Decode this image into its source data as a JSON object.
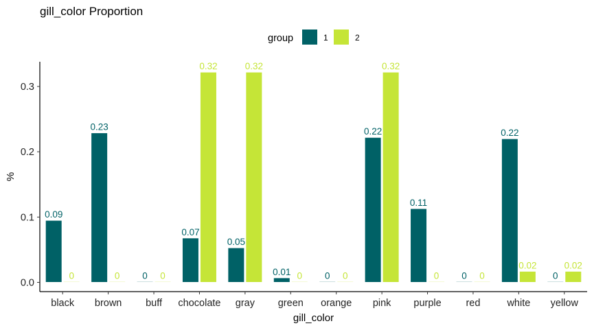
{
  "chart_data": {
    "type": "bar",
    "title": "gill_color Proportion",
    "xlabel": "gill_color",
    "ylabel": "%",
    "ylim": [
      0,
      0.34
    ],
    "yticks": [
      0.0,
      0.1,
      0.2,
      0.3
    ],
    "ytick_labels": [
      "0.0",
      "0.1",
      "0.2",
      "0.3"
    ],
    "categories": [
      "black",
      "brown",
      "buff",
      "chocolate",
      "gray",
      "green",
      "orange",
      "pink",
      "purple",
      "red",
      "white",
      "yellow"
    ],
    "series": [
      {
        "name": "1",
        "color": "#006166",
        "values": [
          0.095,
          0.229,
          0.0,
          0.068,
          0.053,
          0.007,
          0.0,
          0.222,
          0.113,
          0.0,
          0.22,
          0.0
        ],
        "labels": [
          "0.09",
          "0.23",
          "0",
          "0.07",
          "0.05",
          "0.01",
          "0",
          "0.22",
          "0.11",
          "0",
          "0.22",
          "0"
        ]
      },
      {
        "name": "2",
        "color": "#C5E537",
        "values": [
          0.0,
          0.0,
          0.0,
          0.322,
          0.322,
          0.0,
          0.0,
          0.322,
          0.0,
          0.0,
          0.017,
          0.017
        ],
        "labels": [
          "0",
          "0",
          "0",
          "0.32",
          "0.32",
          "0",
          "0",
          "0.32",
          "0",
          "0",
          "0.02",
          "0.02"
        ]
      }
    ],
    "legend": {
      "title": "group",
      "position": "top"
    },
    "grid": false
  }
}
